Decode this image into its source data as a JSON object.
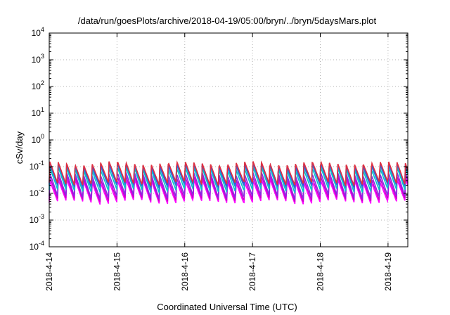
{
  "chart_data": {
    "type": "line",
    "title": "/data/run/goesPlots/archive/2018-04-19/05:00/bryn/../bryn/5daysMars.plot",
    "xlabel": "Coordinated Universal Time (UTC)",
    "ylabel": "cSv/day",
    "yscale": "log",
    "ylim": [
      0.0001,
      10000
    ],
    "xlim": [
      "2018-04-14",
      "2018-04-19 07:00"
    ],
    "grid": true,
    "legend": "none",
    "y_ticks": [
      {
        "base": "10",
        "exp": "-4",
        "value": 0.0001
      },
      {
        "base": "10",
        "exp": "-3",
        "value": 0.001
      },
      {
        "base": "10",
        "exp": "-2",
        "value": 0.01
      },
      {
        "base": "10",
        "exp": "-1",
        "value": 0.1
      },
      {
        "base": "10",
        "exp": "0",
        "value": 1
      },
      {
        "base": "10",
        "exp": "1",
        "value": 10
      },
      {
        "base": "10",
        "exp": "2",
        "value": 100
      },
      {
        "base": "10",
        "exp": "3",
        "value": 1000
      },
      {
        "base": "10",
        "exp": "4",
        "value": 10000
      }
    ],
    "x_ticks": [
      "2018-4-14",
      "2018-4-15",
      "2018-4-16",
      "2018-4-17",
      "2018-4-18",
      "2018-4-19"
    ],
    "pattern": "sawtooth, approx. 8 peaks per day (peak then exponential decay)",
    "series": [
      {
        "color": "#ff00ff",
        "peak": 0.03,
        "trough": 0.0045
      },
      {
        "color": "#cc00cc",
        "peak": 0.04,
        "trough": 0.0055
      },
      {
        "color": "#8a2be2",
        "peak": 0.055,
        "trough": 0.007
      },
      {
        "color": "#00c8c8",
        "peak": 0.085,
        "trough": 0.012
      },
      {
        "color": "#2a7fd4",
        "peak": 0.11,
        "trough": 0.017
      },
      {
        "color": "#3050e0",
        "peak": 0.13,
        "trough": 0.02
      },
      {
        "color": "#e03040",
        "peak": 0.14,
        "trough": 0.022
      }
    ]
  }
}
